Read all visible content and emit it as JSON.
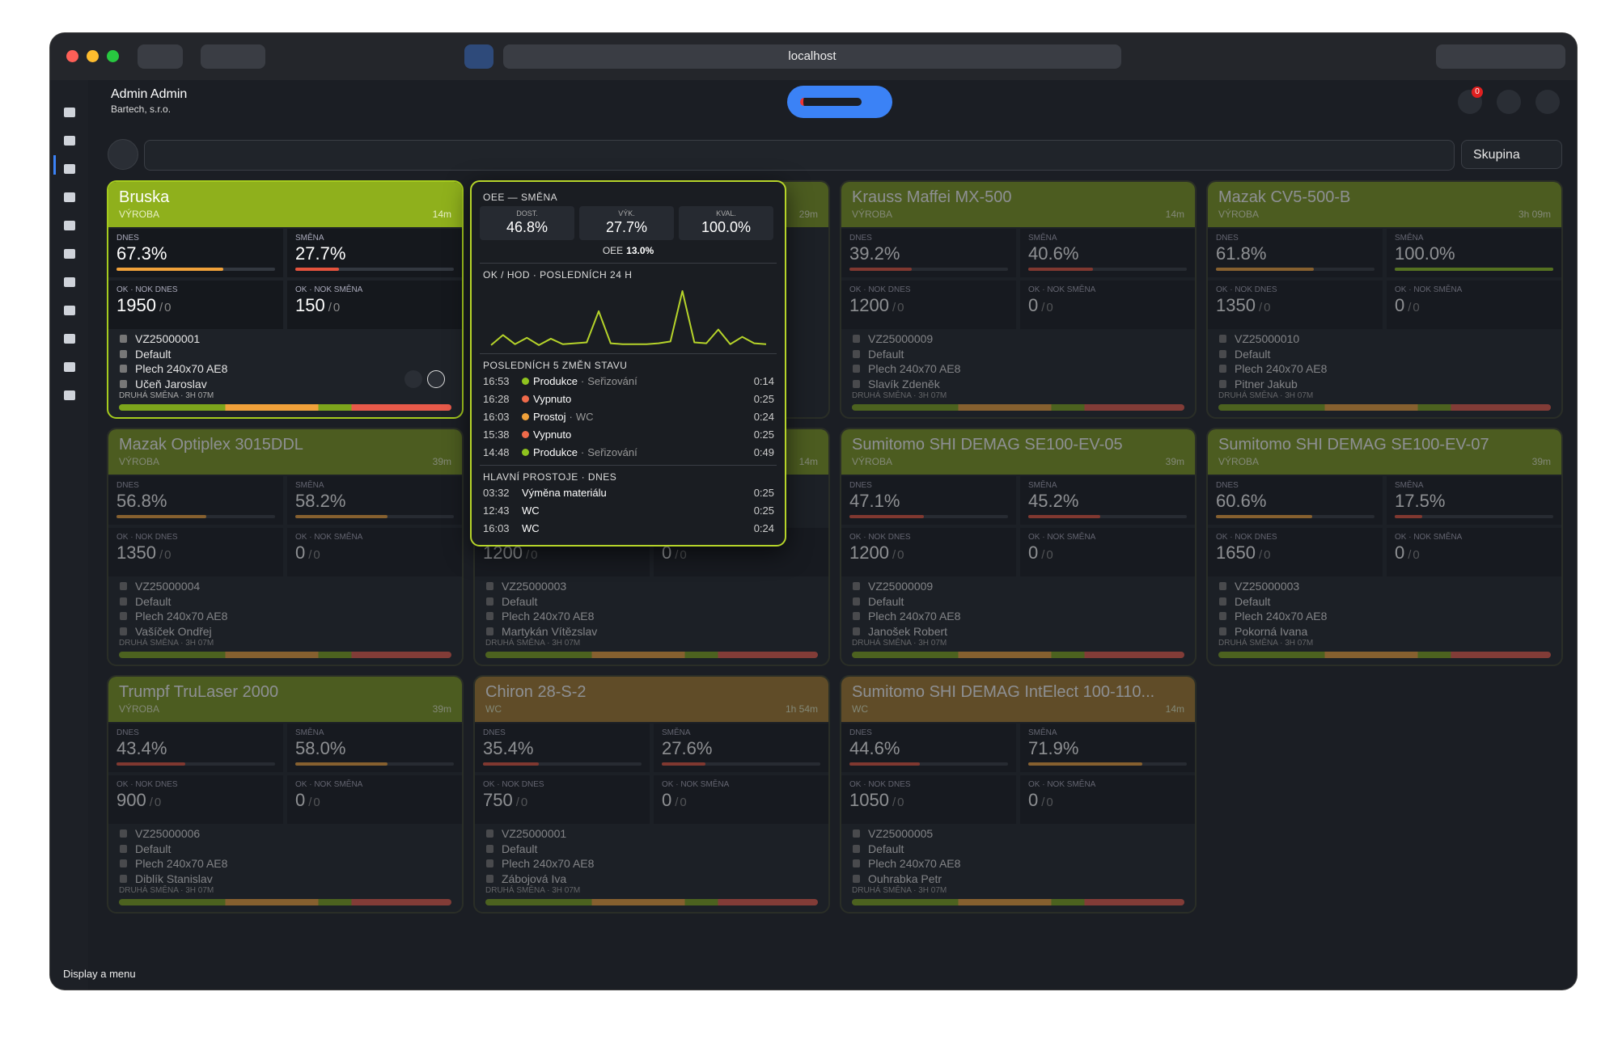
{
  "browser": {
    "url": "localhost",
    "status": "Display a menu"
  },
  "header": {
    "user": "Admin Admin",
    "company": "Bartech, s.r.o.",
    "notifications": "0",
    "group": "Skupina"
  },
  "labels": {
    "today": "DNES",
    "shift": "SMĚNA",
    "ok_today": "OK · NOK DNES",
    "ok_shift": "OK · NOK SMĚNA",
    "sep": "/",
    "shift_info": "DRUHÁ SMĚNA · 3H 07M"
  },
  "cards": [
    {
      "name": "Bruska",
      "status": "VÝROBA",
      "time": "14m",
      "today": "67.3%",
      "shift": "27.7%",
      "ok_today": 1950,
      "nok_today": 0,
      "ok_shift": 150,
      "nok_shift": 0,
      "order": "VZ25000001",
      "program": "Default",
      "material": "Plech 240x70 AE8",
      "operator": "Učeň Jaroslav",
      "color": "#8fb01c",
      "highlight": true
    },
    {
      "time": "29m",
      "color": "#7d9a1e"
    },
    {
      "name": "Krauss Maffei MX-500",
      "status": "VÝROBA",
      "time": "14m",
      "today": "39.2%",
      "shift": "40.6%",
      "ok_today": 1200,
      "nok_today": 0,
      "ok_shift": 0,
      "nok_shift": 0,
      "order": "VZ25000009",
      "program": "Default",
      "material": "Plech 240x70 AE8",
      "operator": "Slavík Zdeněk",
      "color": "#7d9a1e"
    },
    {
      "name": "Mazak CV5-500-B",
      "status": "VÝROBA",
      "time": "3h 09m",
      "today": "61.8%",
      "shift": "100.0%",
      "ok_today": 1350,
      "nok_today": 0,
      "ok_shift": 0,
      "nok_shift": 0,
      "order": "VZ25000010",
      "program": "Default",
      "material": "Plech 240x70 AE8",
      "operator": "Pitner Jakub",
      "color": "#7d9a1e"
    },
    {
      "name": "Mazak Optiplex 3015DDL",
      "status": "VÝROBA",
      "time": "39m",
      "today": "56.8%",
      "shift": "58.2%",
      "ok_today": 1350,
      "nok_today": 0,
      "ok_shift": 0,
      "nok_shift": 0,
      "order": "VZ25000004",
      "program": "Default",
      "material": "Plech 240x70 AE8",
      "operator": "Vašíček Ondřej",
      "color": "#7d9a1e"
    },
    {
      "time": "14m",
      "ok_today": 1200,
      "nok_today": 0,
      "ok_shift": 0,
      "nok_shift": 0,
      "order": "VZ25000003",
      "program": "Default",
      "material": "Plech 240x70 AE8",
      "operator": "Martykán Vítězslav",
      "color": "#7d9a1e"
    },
    {
      "name": "Sumitomo SHI DEMAG SE100-EV-05",
      "status": "VÝROBA",
      "time": "39m",
      "today": "47.1%",
      "shift": "45.2%",
      "ok_today": 1200,
      "nok_today": 0,
      "ok_shift": 0,
      "nok_shift": 0,
      "order": "VZ25000009",
      "program": "Default",
      "material": "Plech 240x70 AE8",
      "operator": "Janošek Robert",
      "color": "#7d9a1e"
    },
    {
      "name": "Sumitomo SHI DEMAG SE100-EV-07",
      "status": "VÝROBA",
      "time": "39m",
      "today": "60.6%",
      "shift": "17.5%",
      "ok_today": 1650,
      "nok_today": 0,
      "ok_shift": 0,
      "nok_shift": 0,
      "order": "VZ25000003",
      "program": "Default",
      "material": "Plech 240x70 AE8",
      "operator": "Pokorná Ivana",
      "color": "#7d9a1e"
    },
    {
      "name": "Trumpf TruLaser 2000",
      "status": "VÝROBA",
      "time": "39m",
      "today": "43.4%",
      "shift": "58.0%",
      "ok_today": 900,
      "nok_today": 0,
      "ok_shift": 0,
      "nok_shift": 0,
      "order": "VZ25000006",
      "program": "Default",
      "material": "Plech 240x70 AE8",
      "operator": "Diblík Stanislav",
      "color": "#7d9a1e"
    },
    {
      "name": "Chiron 28-S-2",
      "status": "WC",
      "time": "1h 54m",
      "today": "35.4%",
      "shift": "27.6%",
      "ok_today": 750,
      "nok_today": 0,
      "ok_shift": 0,
      "nok_shift": 0,
      "order": "VZ25000001",
      "program": "Default",
      "material": "Plech 240x70 AE8",
      "operator": "Zábojová Iva",
      "color": "#a57a2c"
    },
    {
      "name": "Sumitomo SHI DEMAG IntElect 100-110...",
      "status": "WC",
      "time": "14m",
      "today": "44.6%",
      "shift": "71.9%",
      "ok_today": 1050,
      "nok_today": 0,
      "ok_shift": 0,
      "nok_shift": 0,
      "order": "VZ25000005",
      "program": "Default",
      "material": "Plech 240x70 AE8",
      "operator": "Ouhrabka Petr",
      "color": "#a57a2c"
    }
  ],
  "popup": {
    "title": "OEE — SMĚNA",
    "metrics": [
      {
        "label": "DOST.",
        "value": "46.8%"
      },
      {
        "label": "VÝK.",
        "value": "27.7%"
      },
      {
        "label": "KVAL.",
        "value": "100.0%"
      }
    ],
    "oee_label": "OEE",
    "oee": "13.0%",
    "hourly_title": "OK / HOD · POSLEDNÍCH 24 H",
    "hourly": [
      1,
      12,
      2,
      9,
      1,
      8,
      2,
      3,
      4,
      38,
      3,
      2,
      2,
      2,
      3,
      5,
      60,
      4,
      3,
      18,
      2,
      10,
      3,
      2
    ],
    "changes_title": "POSLEDNÍCH 5 ZMĚN STAVU",
    "changes": [
      {
        "time": "16:53",
        "state": "Produkce",
        "reason": "Seřizování",
        "duration": "0:14",
        "color": "#8fc31f"
      },
      {
        "time": "16:28",
        "state": "Vypnuto",
        "duration": "0:25",
        "color": "#ef6a4a"
      },
      {
        "time": "16:03",
        "state": "Prostoj",
        "reason": "WC",
        "duration": "0:24",
        "color": "#f0a13a"
      },
      {
        "time": "15:38",
        "state": "Vypnuto",
        "duration": "0:25",
        "color": "#ef6a4a"
      },
      {
        "time": "14:48",
        "state": "Produkce",
        "reason": "Seřizování",
        "duration": "0:49",
        "color": "#8fc31f"
      }
    ],
    "sep": "·",
    "downtime_title": "HLAVNÍ PROSTOJE · DNES",
    "downtimes": [
      {
        "time": "03:32",
        "reason": "Výměna materiálu",
        "duration": "0:25"
      },
      {
        "time": "12:43",
        "reason": "WC",
        "duration": "0:25"
      },
      {
        "time": "16:03",
        "reason": "WC",
        "duration": "0:24"
      }
    ]
  }
}
